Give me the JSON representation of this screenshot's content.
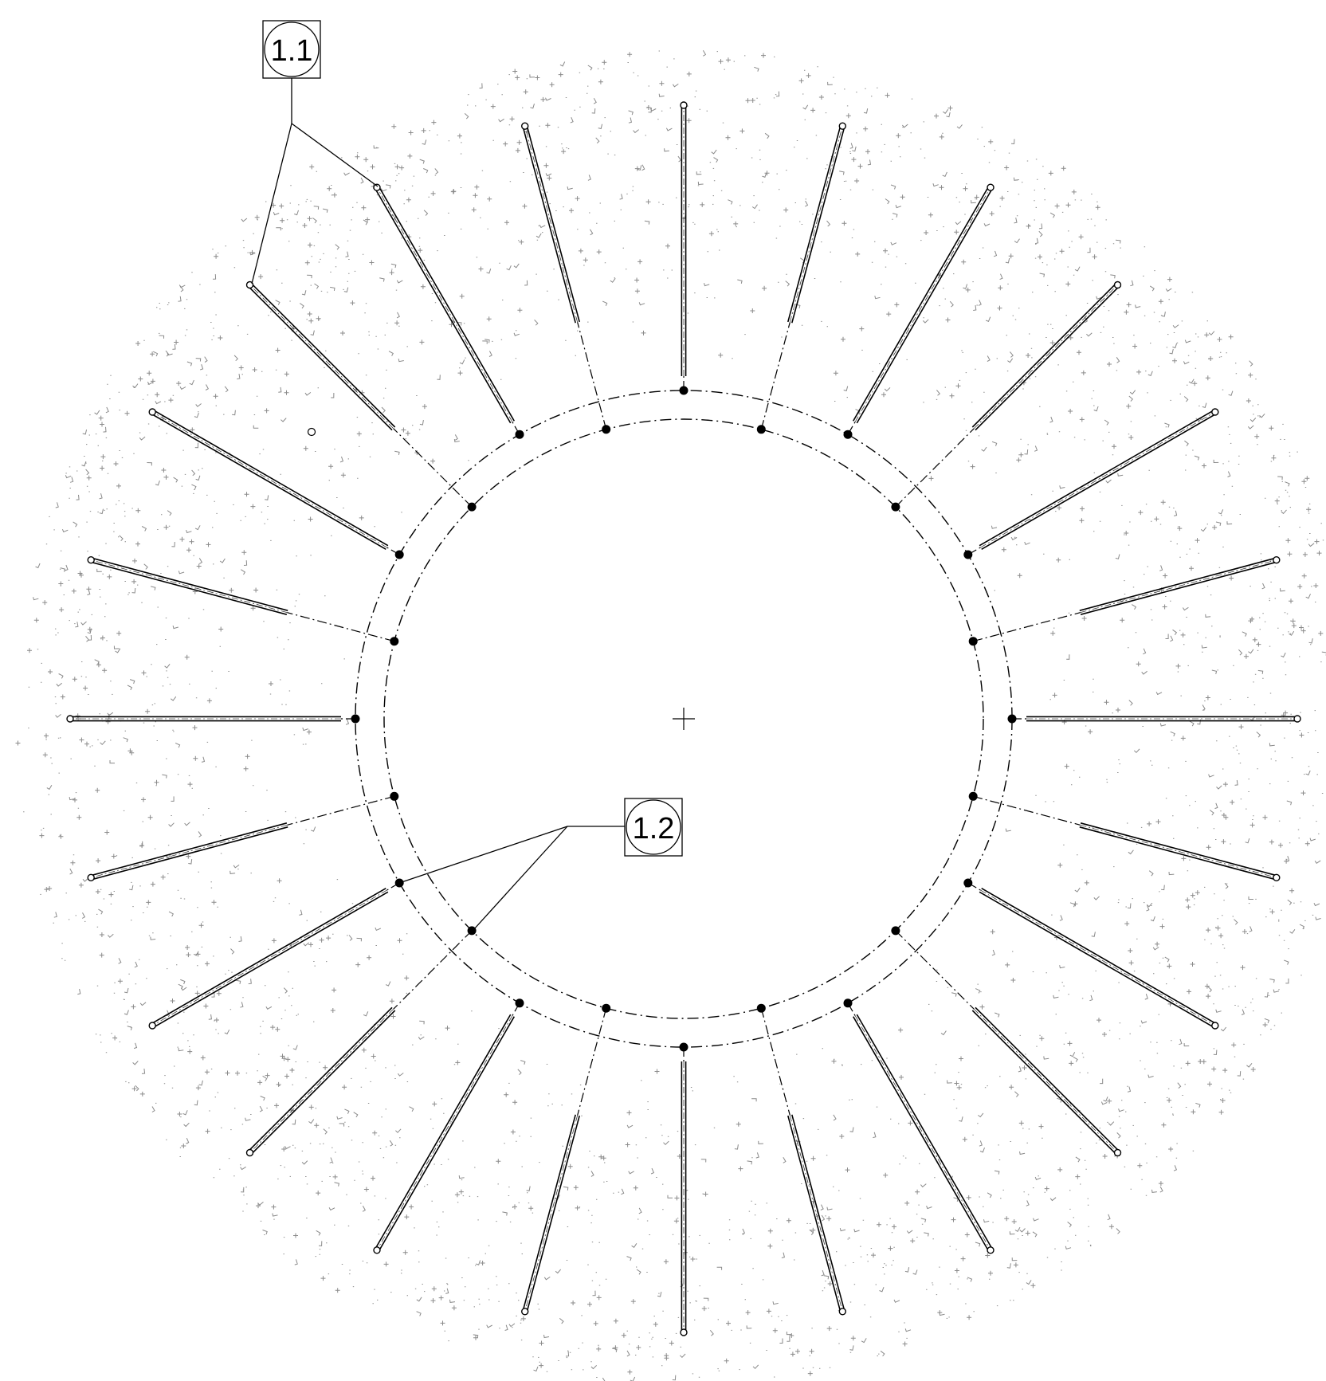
{
  "drawing": {
    "spoke_count": 24,
    "hatch_color": "#8a8a8a",
    "line_color": "#000000"
  },
  "callouts": [
    {
      "id": "callout-1-1",
      "label": "1.1"
    },
    {
      "id": "callout-1-2",
      "label": "1.2"
    }
  ]
}
